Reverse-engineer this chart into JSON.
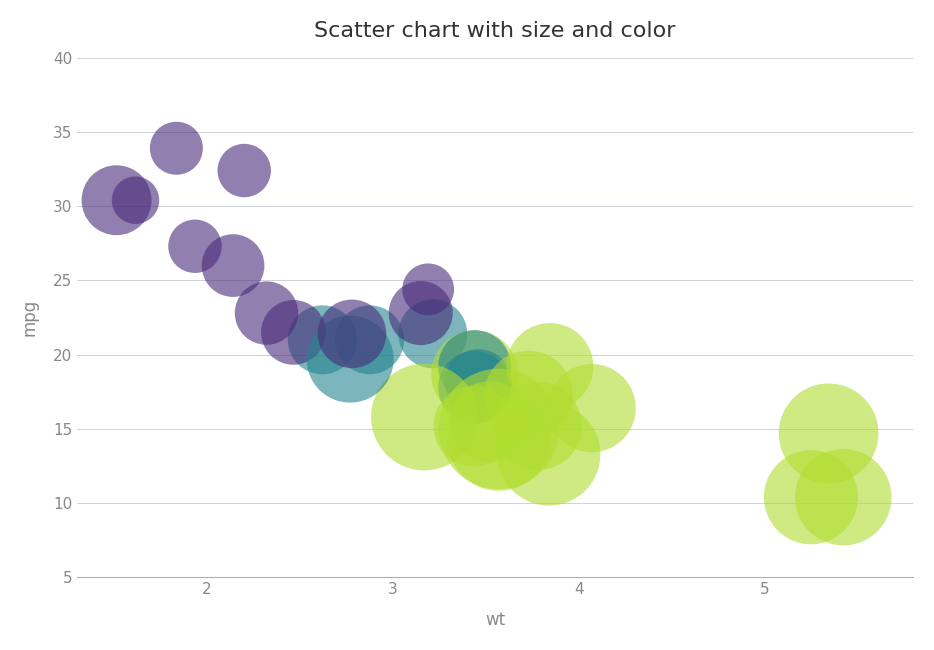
{
  "title": "Scatter chart with size and color",
  "xlabel": "wt",
  "ylabel": "mpg",
  "xlim": [
    1.3,
    5.8
  ],
  "ylim": [
    5,
    40
  ],
  "xticks": [
    2,
    3,
    4,
    5
  ],
  "yticks": [
    5,
    10,
    15,
    20,
    25,
    30,
    35,
    40
  ],
  "background_color": "#ffffff",
  "grid_color": "#d0d0d8",
  "points": [
    {
      "wt": 2.62,
      "mpg": 21.0,
      "hp": 110,
      "cyl": 6
    },
    {
      "wt": 2.875,
      "mpg": 21.0,
      "hp": 110,
      "cyl": 6
    },
    {
      "wt": 2.32,
      "mpg": 22.8,
      "hp": 93,
      "cyl": 4
    },
    {
      "wt": 3.215,
      "mpg": 21.4,
      "hp": 110,
      "cyl": 6
    },
    {
      "wt": 3.44,
      "mpg": 18.7,
      "hp": 175,
      "cyl": 8
    },
    {
      "wt": 3.46,
      "mpg": 18.1,
      "hp": 105,
      "cyl": 6
    },
    {
      "wt": 3.57,
      "mpg": 14.3,
      "hp": 245,
      "cyl": 8
    },
    {
      "wt": 3.19,
      "mpg": 24.4,
      "hp": 62,
      "cyl": 4
    },
    {
      "wt": 3.15,
      "mpg": 22.8,
      "hp": 95,
      "cyl": 4
    },
    {
      "wt": 3.44,
      "mpg": 19.2,
      "hp": 123,
      "cyl": 6
    },
    {
      "wt": 3.44,
      "mpg": 17.8,
      "hp": 123,
      "cyl": 6
    },
    {
      "wt": 4.07,
      "mpg": 16.4,
      "hp": 180,
      "cyl": 8
    },
    {
      "wt": 3.73,
      "mpg": 17.3,
      "hp": 180,
      "cyl": 8
    },
    {
      "wt": 3.78,
      "mpg": 15.2,
      "hp": 180,
      "cyl": 8
    },
    {
      "wt": 5.25,
      "mpg": 10.4,
      "hp": 205,
      "cyl": 8
    },
    {
      "wt": 5.424,
      "mpg": 10.4,
      "hp": 215,
      "cyl": 8
    },
    {
      "wt": 5.345,
      "mpg": 14.7,
      "hp": 230,
      "cyl": 8
    },
    {
      "wt": 2.2,
      "mpg": 32.4,
      "hp": 66,
      "cyl": 4
    },
    {
      "wt": 1.615,
      "mpg": 30.4,
      "hp": 52,
      "cyl": 4
    },
    {
      "wt": 1.835,
      "mpg": 33.9,
      "hp": 65,
      "cyl": 4
    },
    {
      "wt": 2.465,
      "mpg": 21.5,
      "hp": 97,
      "cyl": 4
    },
    {
      "wt": 3.52,
      "mpg": 15.5,
      "hp": 150,
      "cyl": 8
    },
    {
      "wt": 3.435,
      "mpg": 15.2,
      "hp": 150,
      "cyl": 8
    },
    {
      "wt": 3.84,
      "mpg": 13.3,
      "hp": 245,
      "cyl": 8
    },
    {
      "wt": 3.845,
      "mpg": 19.2,
      "hp": 175,
      "cyl": 8
    },
    {
      "wt": 1.935,
      "mpg": 27.3,
      "hp": 66,
      "cyl": 4
    },
    {
      "wt": 2.14,
      "mpg": 26.0,
      "hp": 91,
      "cyl": 4
    },
    {
      "wt": 1.513,
      "mpg": 30.4,
      "hp": 113,
      "cyl": 4
    },
    {
      "wt": 3.17,
      "mpg": 15.8,
      "hp": 264,
      "cyl": 8
    },
    {
      "wt": 2.77,
      "mpg": 19.7,
      "hp": 175,
      "cyl": 6
    },
    {
      "wt": 3.57,
      "mpg": 15.0,
      "hp": 335,
      "cyl": 8
    },
    {
      "wt": 2.78,
      "mpg": 21.4,
      "hp": 109,
      "cyl": 4
    }
  ],
  "cyl_norm": {
    "4": 0.12,
    "6": 0.45,
    "8": 0.88
  },
  "alpha": 0.6,
  "size_scale": 28.0
}
